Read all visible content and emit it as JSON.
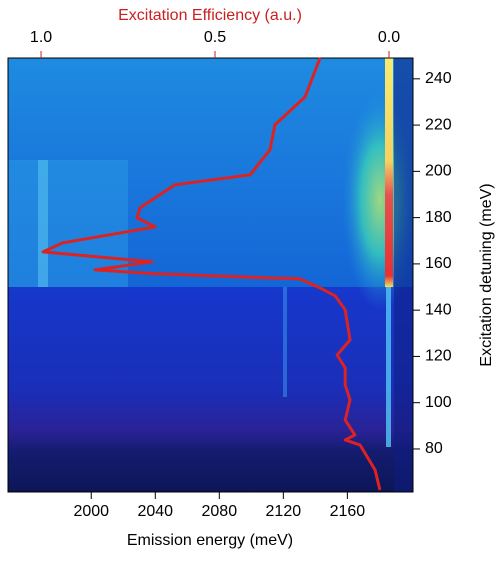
{
  "chart_data": {
    "type": "line",
    "xlabel": "Emission energy (meV)",
    "x2label": "Excitation Efficiency (a.u.)",
    "ylabel": "Excitation detuning (meV)",
    "xlim": [
      1948,
      2201
    ],
    "xticks": [
      2000,
      2040,
      2080,
      2120,
      2160
    ],
    "x2lim": [
      1.095,
      -0.069
    ],
    "x2ticks": [
      {
        "value": 1,
        "label": "1.0"
      },
      {
        "value": 0.5,
        "label": "0.5"
      },
      {
        "value": 0,
        "label": "0.0"
      }
    ],
    "x2color": "#cc1f1f",
    "ylim": [
      61.4,
      249
    ],
    "yticks": [
      80,
      100,
      120,
      140,
      160,
      180,
      200,
      220,
      240
    ],
    "series": [
      {
        "color": "#dd2222",
        "axis": "x2",
        "x": [
          0.198,
          0.241,
          0.328,
          0.342,
          0.365,
          0.399,
          0.615,
          0.716,
          0.724,
          0.672,
          0.937,
          0.994,
          0.681,
          0.845,
          0.672,
          0.256,
          0.198,
          0.155,
          0.126,
          0.112,
          0.149,
          0.126,
          0.126,
          0.112,
          0.126,
          0.098,
          0.126,
          0.083,
          0.04,
          0.026
        ],
        "values": [
          249.1,
          232.2,
          220.1,
          209.3,
          205.0,
          198.5,
          194.2,
          184.2,
          179.9,
          176.0,
          169.1,
          165.2,
          160.9,
          157.4,
          155.7,
          153.5,
          149.6,
          146.2,
          140.1,
          127.1,
          120.6,
          115.0,
          107.7,
          101.2,
          92.5,
          86.1,
          83.9,
          81.7,
          70.9,
          62.3
        ]
      }
    ]
  }
}
